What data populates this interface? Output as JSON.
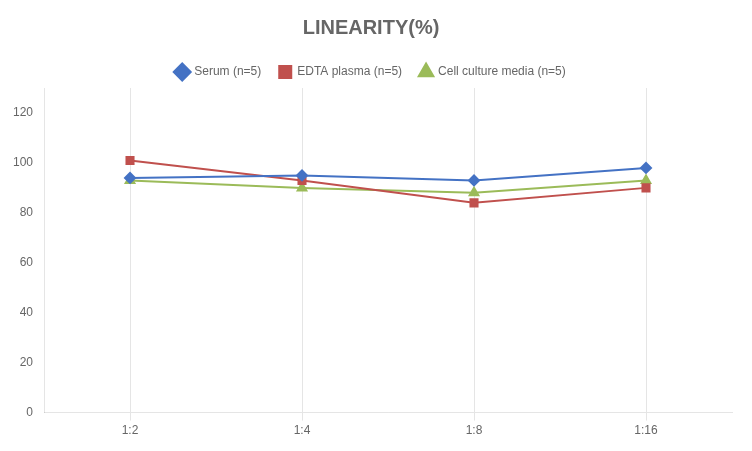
{
  "chart_data": {
    "type": "line",
    "title": "LINEARITY(%)",
    "categories": [
      "1:2",
      "1:4",
      "1:8",
      "1:16"
    ],
    "series": [
      {
        "name": "Serum (n=5)",
        "color": "#4472C4",
        "marker": "diamond",
        "values": [
          94,
          95,
          93,
          98
        ]
      },
      {
        "name": "EDTA plasma (n=5)",
        "color": "#C0504D",
        "marker": "square",
        "values": [
          101,
          93,
          84,
          90
        ]
      },
      {
        "name": "Cell culture media (n=5)",
        "color": "#9BBB59",
        "marker": "triangle",
        "values": [
          93,
          90,
          88,
          93
        ]
      }
    ],
    "ylim": [
      0,
      130
    ],
    "yticks": [
      0,
      20,
      40,
      60,
      80,
      100,
      120
    ],
    "grid": "x",
    "legend": "top"
  }
}
